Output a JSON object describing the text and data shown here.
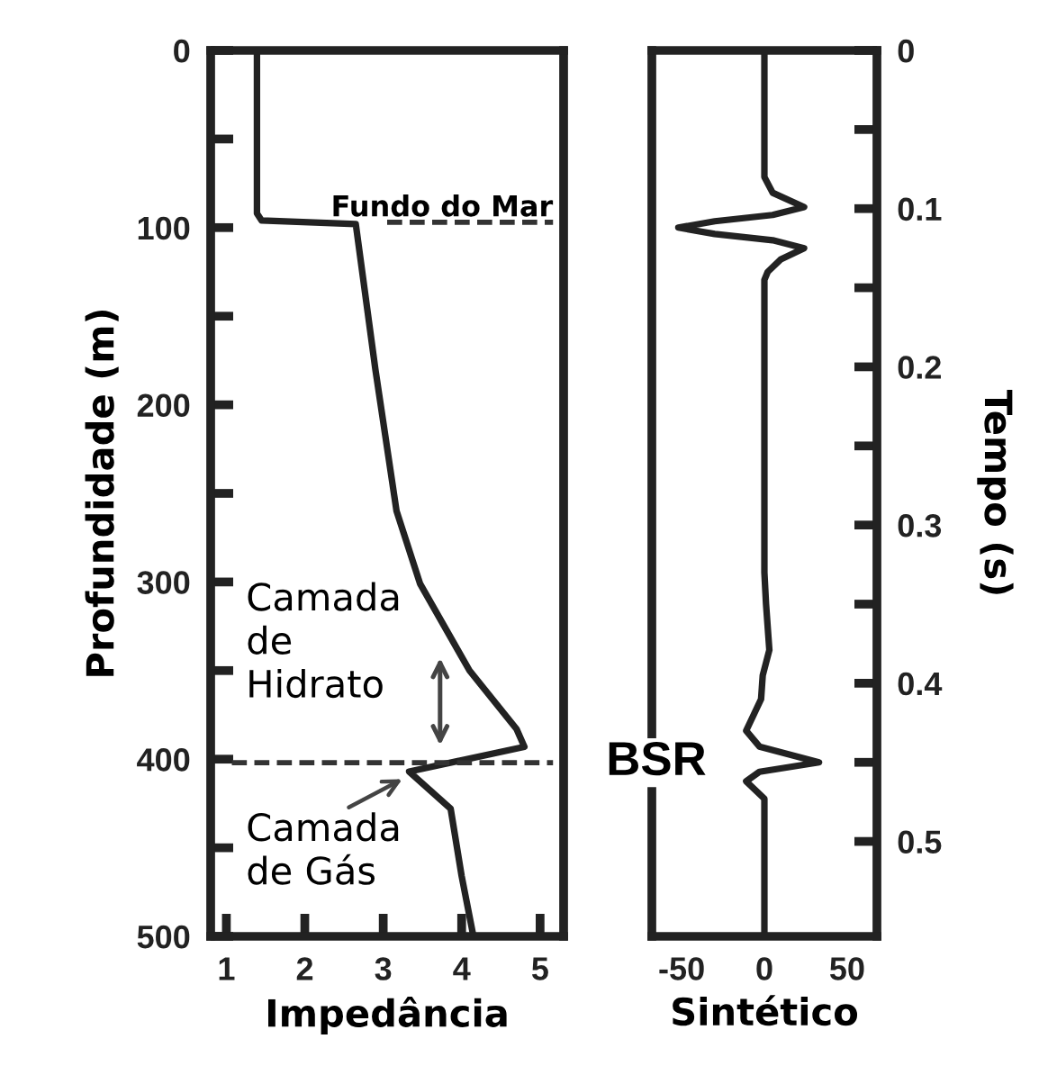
{
  "chart_data": [
    {
      "type": "line",
      "xlabel": "Impedância",
      "ylabel": "Profundidade (m)",
      "xlim": [
        0.8,
        5.3
      ],
      "xticks": [
        1,
        2,
        3,
        4,
        5
      ],
      "ylim": [
        500,
        0
      ],
      "yticks": [
        0,
        {
          "value": 50,
          "label": null
        },
        100,
        {
          "value": 150,
          "label": null
        },
        200,
        {
          "value": 250,
          "label": null
        },
        300,
        {
          "value": 350,
          "label": null
        },
        400,
        {
          "value": 450,
          "label": null
        },
        500
      ],
      "series": [
        {
          "color": "#222222",
          "x": [
            1.39,
            1.39,
            1.45,
            2.65,
            2.9,
            3.17,
            3.47,
            4.1,
            4.7,
            4.8,
            3.33,
            3.86,
            4.0,
            4.15
          ],
          "values": [
            0,
            92,
            96,
            98,
            180,
            260,
            301,
            350,
            383,
            393,
            407,
            428,
            466,
            500
          ]
        }
      ],
      "ref_lines": [
        {
          "axis": "y",
          "value": 97,
          "label": "Fundo do Mar",
          "line_style": "dashed",
          "color": "#333333"
        },
        {
          "axis": "y",
          "value": 402,
          "line_style": "dashed",
          "color": "#333333"
        }
      ],
      "annotations": [
        "Camada\nde\nHidrato",
        {
          "text": "Camada\nde Gás",
          "x": 3.3,
          "y": 410
        }
      ],
      "line_style": "solid",
      "marker": "none",
      "grid": false,
      "legend": false
    },
    {
      "type": "line",
      "xlabel": "Sintético",
      "ylabel": "Tempo (s)",
      "xlim": [
        -68,
        68
      ],
      "xticks": [
        -50,
        0,
        50
      ],
      "ylim": [
        0.56,
        0
      ],
      "yticks": [
        0,
        {
          "value": 0.05,
          "label": null
        },
        0.1,
        {
          "value": 0.15,
          "label": null
        },
        0.2,
        {
          "value": 0.25,
          "label": null
        },
        0.3,
        {
          "value": 0.35,
          "label": null
        },
        0.4,
        {
          "value": 0.45,
          "label": null
        },
        0.5
      ],
      "series": [
        {
          "color": "#222222",
          "x": [
            0,
            0,
            5,
            24,
            5,
            -30,
            -52,
            -30,
            5,
            24,
            10,
            2,
            0,
            0,
            1,
            3,
            -1,
            -2,
            -11,
            -3,
            33,
            -3,
            -11,
            0,
            0
          ],
          "values": [
            0,
            0.08,
            0.09,
            0.099,
            0.104,
            0.108,
            0.112,
            0.116,
            0.12,
            0.125,
            0.132,
            0.14,
            0.145,
            0.33,
            0.35,
            0.379,
            0.395,
            0.41,
            0.43,
            0.44,
            0.45,
            0.456,
            0.462,
            0.473,
            0.56
          ]
        }
      ],
      "annotations": [
        "BSR"
      ],
      "line_style": "solid",
      "marker": "none",
      "grid": false,
      "legend": false
    }
  ]
}
